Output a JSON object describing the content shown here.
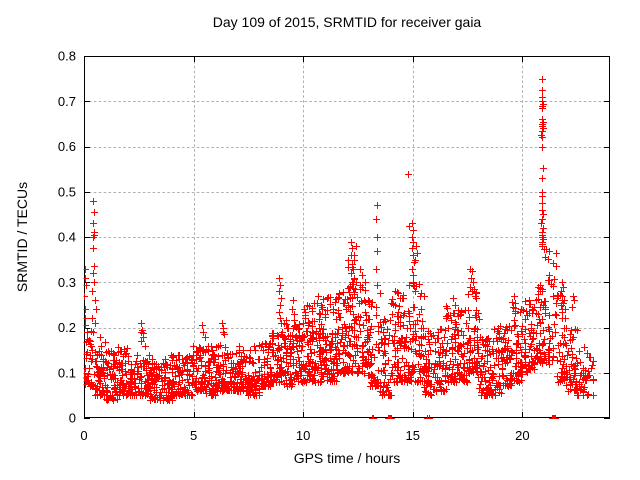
{
  "chart_data": {
    "type": "scatter",
    "title": "Day 109 of 2015, SRMTID for receiver gaia",
    "xlabel": "GPS time / hours",
    "ylabel": "SRMTID / TECUs",
    "xlim": [
      0,
      24
    ],
    "ylim": [
      0,
      0.8
    ],
    "xticks": [
      0,
      5,
      10,
      15,
      20
    ],
    "yticks": [
      0,
      0.1,
      0.2,
      0.3,
      0.4,
      0.5,
      0.6,
      0.7,
      0.8
    ],
    "grid": true,
    "legend": "none",
    "marker": {
      "shape": "plus",
      "color": "#ff0000",
      "size": 7
    },
    "grid_color": "#b0b0b0",
    "axis_color": "#000000",
    "seed": 109,
    "baseline_bands": [
      [
        0.0,
        0.5,
        42,
        0.07,
        0.2
      ],
      [
        0.5,
        1.0,
        50,
        0.05,
        0.18
      ],
      [
        1.0,
        1.5,
        50,
        0.04,
        0.15
      ],
      [
        1.5,
        2.0,
        50,
        0.05,
        0.16
      ],
      [
        2.0,
        2.5,
        50,
        0.05,
        0.14
      ],
      [
        2.5,
        3.0,
        50,
        0.05,
        0.17
      ],
      [
        3.0,
        3.5,
        50,
        0.04,
        0.13
      ],
      [
        3.5,
        4.0,
        50,
        0.04,
        0.14
      ],
      [
        4.0,
        4.5,
        50,
        0.05,
        0.15
      ],
      [
        4.5,
        5.0,
        50,
        0.05,
        0.14
      ],
      [
        5.0,
        5.5,
        50,
        0.06,
        0.16
      ],
      [
        5.5,
        6.0,
        50,
        0.05,
        0.16
      ],
      [
        6.0,
        6.5,
        50,
        0.06,
        0.17
      ],
      [
        6.5,
        7.0,
        50,
        0.06,
        0.15
      ],
      [
        7.0,
        7.5,
        50,
        0.06,
        0.16
      ],
      [
        7.5,
        8.0,
        50,
        0.05,
        0.16
      ],
      [
        8.0,
        8.5,
        50,
        0.07,
        0.17
      ],
      [
        8.5,
        9.0,
        50,
        0.08,
        0.19
      ],
      [
        9.0,
        9.5,
        55,
        0.07,
        0.22
      ],
      [
        9.5,
        10.0,
        55,
        0.08,
        0.22
      ],
      [
        10.0,
        10.5,
        60,
        0.08,
        0.25
      ],
      [
        10.5,
        11.0,
        60,
        0.08,
        0.27
      ],
      [
        11.0,
        11.5,
        60,
        0.08,
        0.27
      ],
      [
        11.5,
        12.0,
        60,
        0.1,
        0.28
      ],
      [
        12.0,
        12.5,
        62,
        0.1,
        0.38
      ],
      [
        12.5,
        13.0,
        58,
        0.1,
        0.32
      ],
      [
        13.0,
        13.5,
        48,
        0.07,
        0.28
      ],
      [
        13.5,
        14.0,
        45,
        0.05,
        0.22
      ],
      [
        14.0,
        14.5,
        55,
        0.08,
        0.28
      ],
      [
        14.5,
        15.0,
        55,
        0.08,
        0.3
      ],
      [
        15.0,
        15.5,
        55,
        0.08,
        0.3
      ],
      [
        15.5,
        16.0,
        45,
        0.05,
        0.2
      ],
      [
        16.0,
        16.5,
        48,
        0.06,
        0.2
      ],
      [
        16.5,
        17.0,
        50,
        0.08,
        0.26
      ],
      [
        17.0,
        17.5,
        50,
        0.08,
        0.24
      ],
      [
        17.5,
        18.0,
        55,
        0.1,
        0.3
      ],
      [
        18.0,
        18.5,
        50,
        0.05,
        0.18
      ],
      [
        18.5,
        19.0,
        50,
        0.05,
        0.2
      ],
      [
        19.0,
        19.5,
        50,
        0.07,
        0.22
      ],
      [
        19.5,
        20.0,
        52,
        0.08,
        0.26
      ],
      [
        20.0,
        20.5,
        52,
        0.1,
        0.26
      ],
      [
        20.5,
        21.0,
        50,
        0.12,
        0.3
      ],
      [
        21.0,
        21.5,
        42,
        0.12,
        0.38
      ],
      [
        21.5,
        22.0,
        45,
        0.08,
        0.28
      ],
      [
        22.0,
        22.5,
        42,
        0.06,
        0.2
      ],
      [
        22.5,
        23.2,
        45,
        0.05,
        0.16
      ]
    ],
    "feature_points": [
      [
        0.42,
        0.48
      ],
      [
        0.45,
        0.455
      ],
      [
        0.4,
        0.43
      ],
      [
        0.44,
        0.41
      ],
      [
        0.46,
        0.405
      ],
      [
        0.42,
        0.4
      ],
      [
        0.43,
        0.375
      ],
      [
        0.47,
        0.335
      ],
      [
        0.4,
        0.32
      ],
      [
        0.45,
        0.3
      ],
      [
        0.38,
        0.28
      ],
      [
        0.5,
        0.26
      ],
      [
        0.55,
        0.24
      ],
      [
        0.35,
        0.22
      ],
      [
        0.48,
        0.21
      ],
      [
        0.05,
        0.33
      ],
      [
        0.03,
        0.31
      ],
      [
        0.07,
        0.295
      ],
      [
        0.02,
        0.27
      ],
      [
        0.04,
        0.24
      ],
      [
        0.06,
        0.22
      ],
      [
        0.03,
        0.205
      ],
      [
        2.6,
        0.21
      ],
      [
        2.65,
        0.195
      ],
      [
        2.62,
        0.19
      ],
      [
        2.68,
        0.188
      ],
      [
        2.7,
        0.18
      ],
      [
        2.58,
        0.17
      ],
      [
        5.4,
        0.205
      ],
      [
        5.45,
        0.19
      ],
      [
        5.5,
        0.18
      ],
      [
        6.3,
        0.21
      ],
      [
        6.35,
        0.2
      ],
      [
        6.32,
        0.19
      ],
      [
        6.4,
        0.185
      ],
      [
        8.9,
        0.31
      ],
      [
        8.95,
        0.295
      ],
      [
        8.92,
        0.28
      ],
      [
        8.97,
        0.265
      ],
      [
        8.93,
        0.25
      ],
      [
        8.9,
        0.235
      ],
      [
        8.96,
        0.22
      ],
      [
        9.0,
        0.21
      ],
      [
        9.55,
        0.26
      ],
      [
        9.5,
        0.24
      ],
      [
        9.6,
        0.23
      ],
      [
        10.8,
        0.25
      ],
      [
        10.85,
        0.24
      ],
      [
        10.75,
        0.23
      ],
      [
        12.2,
        0.39
      ],
      [
        12.25,
        0.375
      ],
      [
        12.18,
        0.36
      ],
      [
        12.3,
        0.35
      ],
      [
        12.22,
        0.34
      ],
      [
        12.28,
        0.33
      ],
      [
        12.2,
        0.32
      ],
      [
        12.32,
        0.31
      ],
      [
        12.25,
        0.3
      ],
      [
        12.15,
        0.29
      ],
      [
        12.35,
        0.285
      ],
      [
        12.6,
        0.33
      ],
      [
        12.7,
        0.315
      ],
      [
        12.8,
        0.3
      ],
      [
        13.35,
        0.47
      ],
      [
        13.34,
        0.44
      ],
      [
        13.36,
        0.4
      ],
      [
        13.35,
        0.37
      ],
      [
        13.33,
        0.33
      ],
      [
        13.37,
        0.295
      ],
      [
        14.8,
        0.54
      ],
      [
        14.82,
        0.425
      ],
      [
        14.95,
        0.43
      ],
      [
        15.0,
        0.415
      ],
      [
        14.98,
        0.4
      ],
      [
        15.02,
        0.39
      ],
      [
        14.96,
        0.375
      ],
      [
        15.0,
        0.36
      ],
      [
        15.05,
        0.345
      ],
      [
        14.97,
        0.33
      ],
      [
        15.03,
        0.315
      ],
      [
        15.0,
        0.3
      ],
      [
        15.15,
        0.38
      ],
      [
        15.18,
        0.365
      ],
      [
        15.12,
        0.35
      ],
      [
        16.85,
        0.265
      ],
      [
        16.95,
        0.25
      ],
      [
        17.6,
        0.33
      ],
      [
        17.7,
        0.325
      ],
      [
        17.65,
        0.31
      ],
      [
        17.75,
        0.3
      ],
      [
        17.62,
        0.29
      ],
      [
        17.8,
        0.285
      ],
      [
        17.7,
        0.28
      ],
      [
        19.6,
        0.27
      ],
      [
        19.65,
        0.255
      ],
      [
        20.9,
        0.75
      ],
      [
        20.88,
        0.725
      ],
      [
        20.92,
        0.71
      ],
      [
        20.9,
        0.7
      ],
      [
        20.94,
        0.695
      ],
      [
        20.88,
        0.69
      ],
      [
        20.91,
        0.685
      ],
      [
        20.9,
        0.66
      ],
      [
        20.93,
        0.655
      ],
      [
        20.89,
        0.65
      ],
      [
        20.91,
        0.645
      ],
      [
        20.95,
        0.64
      ],
      [
        20.9,
        0.635
      ],
      [
        20.87,
        0.625
      ],
      [
        20.92,
        0.62
      ],
      [
        20.9,
        0.6
      ],
      [
        20.93,
        0.553
      ],
      [
        20.88,
        0.53
      ],
      [
        20.9,
        0.5
      ],
      [
        20.92,
        0.49
      ],
      [
        20.89,
        0.475
      ],
      [
        20.91,
        0.46
      ],
      [
        20.94,
        0.45
      ],
      [
        20.9,
        0.44
      ],
      [
        20.87,
        0.43
      ],
      [
        20.93,
        0.42
      ],
      [
        20.9,
        0.41
      ],
      [
        20.91,
        0.405
      ],
      [
        20.88,
        0.4
      ],
      [
        20.95,
        0.395
      ],
      [
        20.92,
        0.39
      ],
      [
        20.9,
        0.385
      ],
      [
        20.89,
        0.38
      ],
      [
        21.8,
        0.3
      ],
      [
        21.85,
        0.29
      ],
      [
        21.78,
        0.28
      ],
      [
        21.82,
        0.27
      ],
      [
        21.8,
        0.26
      ],
      [
        21.86,
        0.255
      ],
      [
        21.75,
        0.25
      ],
      [
        21.83,
        0.24
      ],
      [
        22.3,
        0.27
      ],
      [
        22.35,
        0.26
      ],
      [
        22.25,
        0.245
      ]
    ],
    "zero_points": [
      [
        13.12,
        0
      ],
      [
        13.18,
        0
      ],
      [
        13.85,
        0
      ],
      [
        13.88,
        0
      ],
      [
        13.9,
        0
      ],
      [
        13.93,
        0
      ],
      [
        13.96,
        0
      ],
      [
        14.0,
        0
      ],
      [
        15.65,
        0
      ],
      [
        15.72,
        0
      ],
      [
        21.36,
        0
      ],
      [
        21.4,
        0
      ],
      [
        21.44,
        0
      ],
      [
        21.48,
        0
      ],
      [
        21.5,
        0
      ]
    ]
  }
}
